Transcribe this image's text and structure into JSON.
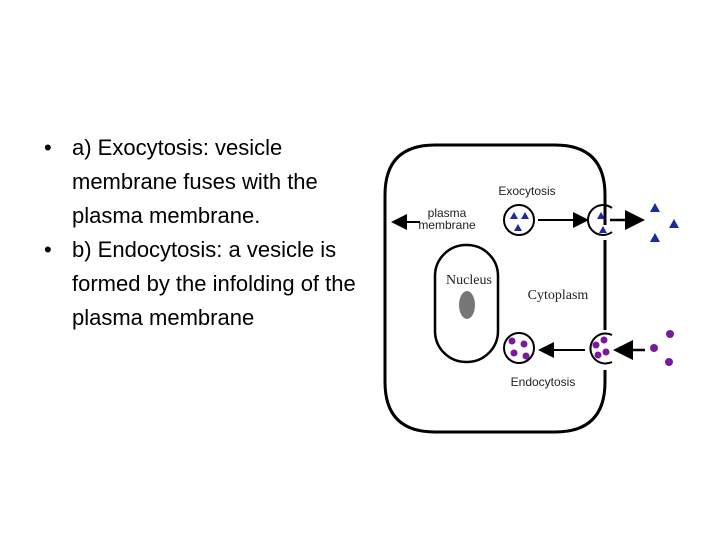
{
  "bullets": [
    "a) Exocytosis: vesicle membrane fuses with the plasma membrane.",
    "b) Endocytosis: a vesicle is formed by the infolding of the plasma membrane"
  ],
  "diagram": {
    "exocytosis": "Exocytosis",
    "plasma_membrane": "plasma membrane",
    "nucleus": "Nucleus",
    "cytoplasm": "Cytoplasm",
    "endocytosis": "Endocytosis"
  }
}
